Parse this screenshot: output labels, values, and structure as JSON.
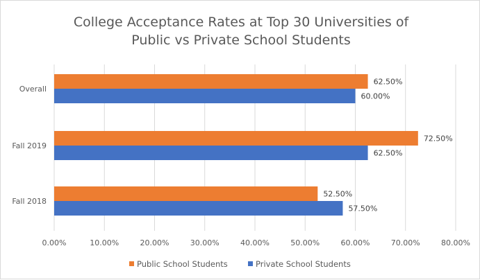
{
  "chart_data": {
    "type": "bar",
    "orientation": "horizontal",
    "title": [
      "College Acceptance Rates at Top 30 Universities of",
      "Public vs Private School Students"
    ],
    "categories": [
      "Overall",
      "Fall 2019",
      "Fall 2018"
    ],
    "series": [
      {
        "name": "Public School Students",
        "color": "#ed7d31",
        "values": [
          62.5,
          72.5,
          52.5
        ],
        "labels": [
          "62.50%",
          "72.50%",
          "52.50%"
        ]
      },
      {
        "name": "Private School Students",
        "color": "#4472c4",
        "values": [
          60.0,
          62.5,
          57.5
        ],
        "labels": [
          "60.00%",
          "62.50%",
          "57.50%"
        ]
      }
    ],
    "xlim": [
      0,
      80
    ],
    "xticks": [
      "0.00%",
      "10.00%",
      "20.00%",
      "30.00%",
      "40.00%",
      "50.00%",
      "60.00%",
      "70.00%",
      "80.00%"
    ],
    "grid": true,
    "legend": "bottom",
    "gridline_color": "#d9d9d9",
    "text_color": "#595959"
  }
}
